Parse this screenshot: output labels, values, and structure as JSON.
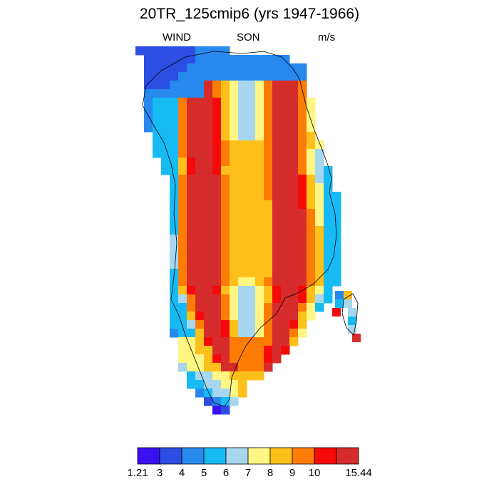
{
  "title": "20TR_125cmip6 (yrs 1947-1966)",
  "subtitle": {
    "left": "WIND",
    "center": "SON",
    "right": "m/s"
  },
  "colorbar": {
    "labels": [
      "1.21",
      "3",
      "4",
      "5",
      "6",
      "7",
      "8",
      "9",
      "10",
      "15.44"
    ],
    "colors": [
      "#3a0ff0",
      "#2c4ee3",
      "#2789ee",
      "#17bbf4",
      "#a6d7ef",
      "#fff684",
      "#fdc01a",
      "#fd7c06",
      "#f50a0a",
      "#d72c2c"
    ]
  }
}
